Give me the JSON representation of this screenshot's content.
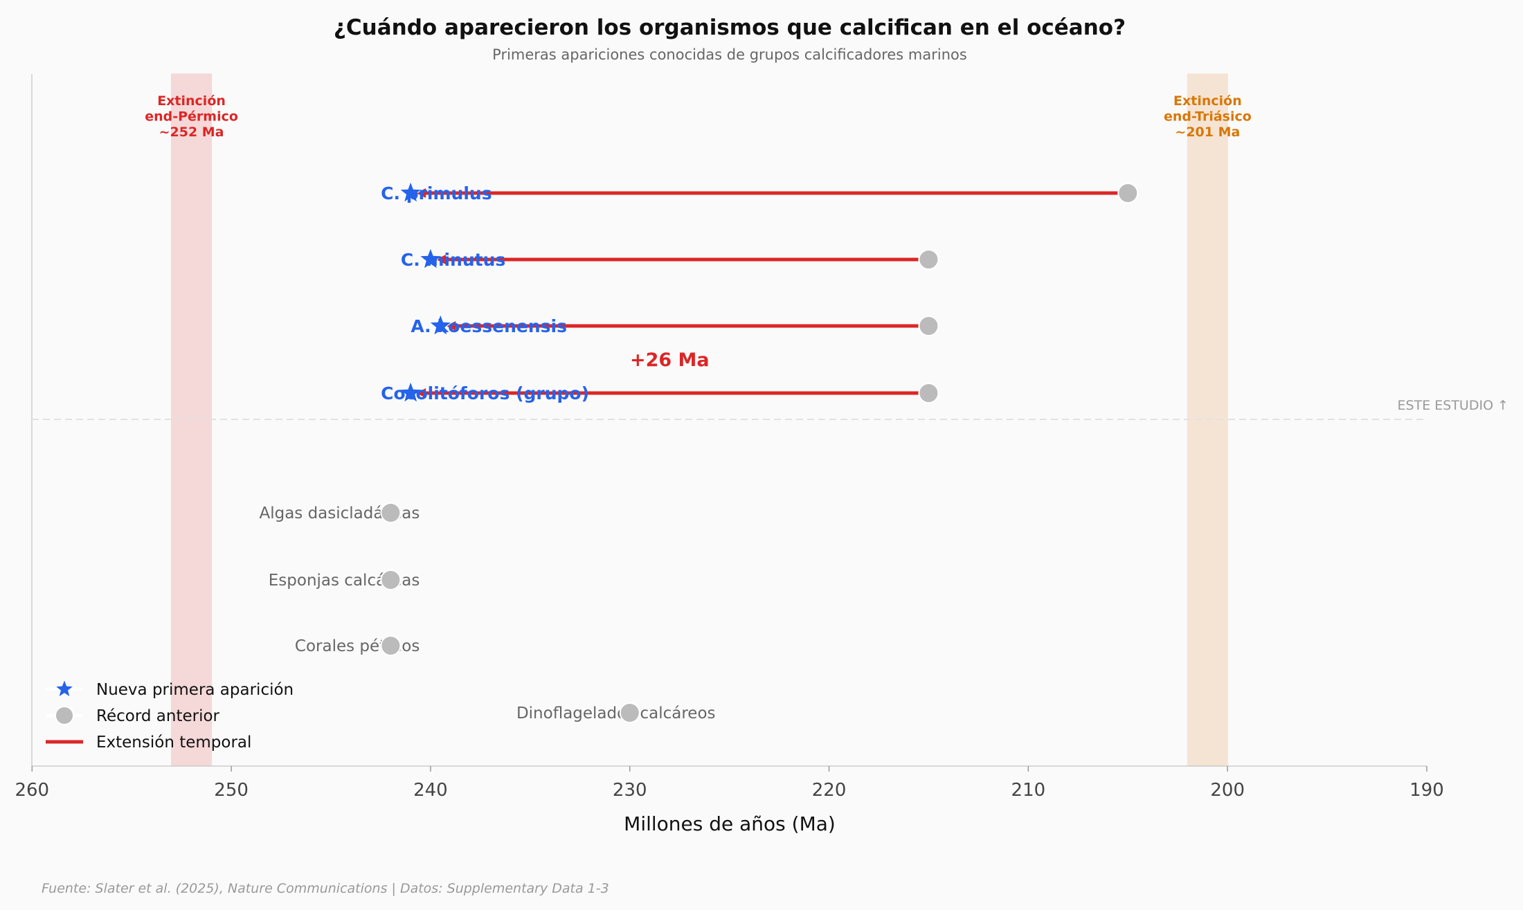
{
  "chart_data": {
    "type": "scatter",
    "title": "¿Cuándo aparecieron los organismos que calcifican en el océano?",
    "subtitle": "Primeras apariciones conocidas de grupos calcificadores marinos",
    "xlabel": "Millones de años (Ma)",
    "xlim": [
      260,
      190
    ],
    "x_ticks": [
      "260",
      "250",
      "240",
      "230",
      "220",
      "210",
      "200",
      "190"
    ],
    "grid": false,
    "new_records": [
      {
        "label": "C. primulus",
        "new_first": 241,
        "previous": 205
      },
      {
        "label": "C. minutus",
        "new_first": 240,
        "previous": 215
      },
      {
        "label": "A. koessenensis",
        "new_first": 239.5,
        "previous": 215
      },
      {
        "label": "Cocolitóforos (grupo)",
        "new_first": 241,
        "previous": 215
      }
    ],
    "other_groups": [
      {
        "label": "Algas dasicladáceas",
        "previous": 242
      },
      {
        "label": "Esponjas calcáreas",
        "previous": 242
      },
      {
        "label": "Corales pétreos",
        "previous": 242
      },
      {
        "label": "Dinoflagelados calcáreos",
        "previous": 230
      }
    ],
    "extinctions": [
      {
        "lines": [
          "Extinción",
          "end-Pérmico",
          "~252 Ma"
        ],
        "range": [
          253,
          251
        ],
        "color": "#dc2626",
        "fill": "#f5d8d8"
      },
      {
        "lines": [
          "Extinción",
          "end-Triásico",
          "~201 Ma"
        ],
        "range": [
          202,
          200
        ],
        "color": "#d97706",
        "fill": "#f5e4d4"
      }
    ],
    "annotation": "+26 Ma",
    "annotation_x": 228,
    "divider_label": "ESTE ESTUDIO ↑",
    "legend": {
      "placement": "bottom-left",
      "items": [
        "Nueva primera aparición",
        "Récord anterior",
        "Extensión temporal"
      ]
    },
    "colors": {
      "star": "#2563eb",
      "dot": "#bbbbbb",
      "line": "#dc2626",
      "label_gray": "#666666"
    }
  },
  "footer": "Fuente: Slater et al. (2025), Nature Communications | Datos: Supplementary Data 1-3"
}
